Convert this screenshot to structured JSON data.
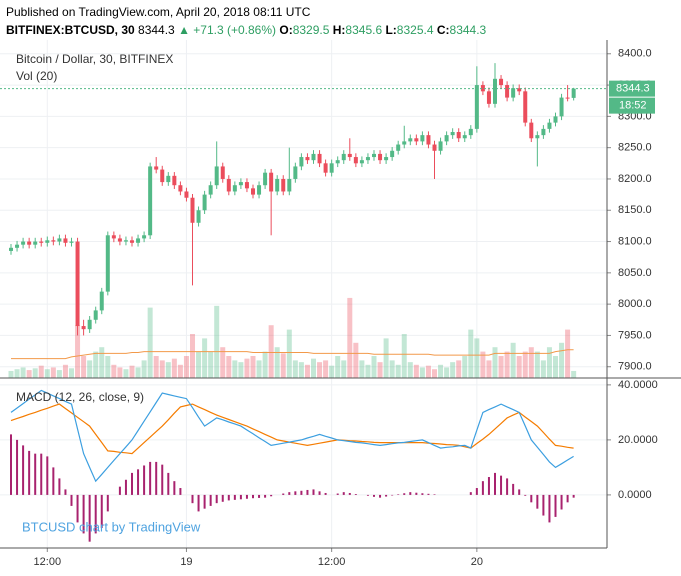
{
  "header": {
    "published": "Published on TradingView.com, April 20, 2018 08:11 UTC",
    "symbol": "BITFINEX:BTCUSD, 30",
    "price": "8344.3",
    "change": "▲ +71.3 (+0.86%)",
    "ohlc": [
      {
        "label": "O:",
        "value": "8329.5"
      },
      {
        "label": "H:",
        "value": "8345.6"
      },
      {
        "label": "L:",
        "value": "8325.4"
      },
      {
        "label": "C:",
        "value": "8344.3"
      }
    ]
  },
  "chart_data": {
    "type": "candlestick",
    "title": "Bitcoin / Dollar, 30, BITFINEX",
    "volume_label": "Vol (20)",
    "watermark": "BTCUSD chart by TradingView",
    "countdown": "18:52",
    "up_color": "#53b987",
    "down_color": "#eb4d5c",
    "volume_ma_color": "#f2994a",
    "open": [
      8085,
      8090,
      8095,
      8100,
      8095,
      8100,
      8098,
      8102,
      8100,
      8105,
      8098,
      8100,
      7965,
      7960,
      7975,
      7990,
      8020,
      8110,
      8105,
      8100,
      8102,
      8098,
      8105,
      8110,
      8220,
      8215,
      8195,
      8205,
      8190,
      8180,
      8170,
      8130,
      8150,
      8175,
      8190,
      8220,
      8200,
      8180,
      8190,
      8195,
      8185,
      8175,
      8190,
      8210,
      8180,
      8200,
      8180,
      8200,
      8220,
      8235,
      8230,
      8240,
      8225,
      8210,
      8225,
      8230,
      8240,
      8235,
      8225,
      8230,
      8235,
      8240,
      8230,
      8235,
      8245,
      8255,
      8260,
      8265,
      8260,
      8270,
      8255,
      8245,
      8260,
      8270,
      8275,
      8265,
      8270,
      8280,
      8350,
      8340,
      8320,
      8360,
      8350,
      8330,
      8345,
      8340,
      8290,
      8265,
      8270,
      8280,
      8290,
      8300,
      8330,
      8329.5
    ],
    "high": [
      8096,
      8101,
      8106,
      8106,
      8106,
      8106,
      8108,
      8108,
      8111,
      8111,
      8106,
      8106,
      7975,
      7981,
      7996,
      8026,
      8116,
      8116,
      8111,
      8108,
      8108,
      8111,
      8116,
      8226,
      8235,
      8221,
      8211,
      8211,
      8196,
      8186,
      8176,
      8156,
      8181,
      8196,
      8260,
      8226,
      8206,
      8196,
      8201,
      8201,
      8191,
      8196,
      8216,
      8216,
      8206,
      8206,
      8250,
      8226,
      8241,
      8241,
      8246,
      8246,
      8231,
      8231,
      8236,
      8246,
      8265,
      8241,
      8236,
      8241,
      8246,
      8246,
      8241,
      8251,
      8261,
      8285,
      8271,
      8271,
      8276,
      8276,
      8261,
      8266,
      8276,
      8281,
      8281,
      8276,
      8286,
      8380,
      8356,
      8346,
      8385,
      8366,
      8356,
      8351,
      8351,
      8346,
      8296,
      8276,
      8286,
      8296,
      8306,
      8336,
      8350,
      8345.6
    ],
    "low": [
      8079,
      8084,
      8089,
      8089,
      8089,
      8092,
      8092,
      8094,
      8094,
      8092,
      8092,
      7950,
      7950,
      7954,
      7969,
      7984,
      8014,
      8099,
      8094,
      8094,
      8092,
      8092,
      8099,
      8104,
      8209,
      8189,
      8189,
      8184,
      8174,
      8164,
      8030,
      8124,
      8144,
      8169,
      8184,
      8194,
      8174,
      8174,
      8184,
      8179,
      8169,
      8169,
      8184,
      8110,
      8174,
      8174,
      8174,
      8194,
      8214,
      8224,
      8224,
      8219,
      8204,
      8204,
      8219,
      8224,
      8229,
      8219,
      8219,
      8224,
      8229,
      8224,
      8224,
      8229,
      8239,
      8249,
      8254,
      8254,
      8254,
      8249,
      8200,
      8239,
      8254,
      8264,
      8259,
      8259,
      8264,
      8274,
      8334,
      8314,
      8314,
      8344,
      8324,
      8324,
      8334,
      8284,
      8259,
      8220,
      8264,
      8274,
      8284,
      8294,
      8324,
      8325.4
    ],
    "close": [
      8090,
      8095,
      8100,
      8095,
      8100,
      8098,
      8102,
      8100,
      8105,
      8098,
      8100,
      7965,
      7960,
      7975,
      7990,
      8020,
      8110,
      8105,
      8100,
      8102,
      8098,
      8105,
      8110,
      8220,
      8215,
      8195,
      8205,
      8190,
      8180,
      8170,
      8130,
      8150,
      8175,
      8190,
      8220,
      8200,
      8180,
      8190,
      8195,
      8185,
      8175,
      8190,
      8210,
      8180,
      8200,
      8180,
      8200,
      8220,
      8235,
      8230,
      8240,
      8225,
      8210,
      8225,
      8230,
      8240,
      8235,
      8225,
      8230,
      8235,
      8240,
      8230,
      8235,
      8245,
      8255,
      8260,
      8265,
      8260,
      8270,
      8255,
      8245,
      8260,
      8270,
      8275,
      8265,
      8270,
      8280,
      8350,
      8340,
      8320,
      8360,
      8350,
      8330,
      8345,
      8340,
      8290,
      8265,
      8270,
      8280,
      8290,
      8300,
      8330,
      8329.5,
      8344.3
    ],
    "volume": [
      8,
      10,
      12,
      9,
      11,
      14,
      10,
      12,
      9,
      15,
      11,
      60,
      25,
      20,
      30,
      35,
      25,
      15,
      12,
      10,
      14,
      12,
      20,
      80,
      25,
      20,
      18,
      22,
      15,
      25,
      50,
      30,
      45,
      30,
      82,
      35,
      25,
      20,
      18,
      22,
      25,
      20,
      30,
      60,
      35,
      28,
      55,
      20,
      18,
      15,
      22,
      18,
      20,
      14,
      25,
      20,
      91,
      40,
      20,
      15,
      25,
      18,
      45,
      20,
      15,
      50,
      18,
      15,
      12,
      14,
      10,
      15,
      12,
      18,
      20,
      25,
      55,
      45,
      30,
      20,
      35,
      25,
      30,
      40,
      25,
      30,
      35,
      30,
      20,
      35,
      25,
      40,
      55,
      8
    ],
    "volume_ma": [
      22,
      22,
      22,
      22,
      22,
      22,
      22,
      22,
      22,
      22,
      24,
      25,
      26,
      27,
      28,
      28,
      28,
      28,
      28,
      28,
      29,
      29,
      30,
      30,
      30,
      30,
      30,
      30,
      30,
      30,
      30,
      30,
      30,
      30,
      30,
      30,
      30,
      30,
      30,
      30,
      29,
      29,
      29,
      29,
      29,
      29,
      29,
      29,
      29,
      29,
      28,
      28,
      28,
      28,
      28,
      28,
      28,
      28,
      28,
      28,
      27,
      27,
      27,
      27,
      27,
      27,
      27,
      27,
      27,
      27,
      26,
      26,
      26,
      26,
      26,
      26,
      26,
      26,
      26,
      26,
      28,
      28,
      28,
      28,
      28,
      28,
      28,
      28,
      28,
      28,
      30,
      31,
      32,
      32
    ],
    "ylim": [
      7882,
      8422
    ],
    "yticks": [
      {
        "value": 7900,
        "label": "7900.0"
      },
      {
        "value": 7950,
        "label": "7950.0"
      },
      {
        "value": 8000,
        "label": "8000.0"
      },
      {
        "value": 8050,
        "label": "8050.0"
      },
      {
        "value": 8100,
        "label": "8100.0"
      },
      {
        "value": 8150,
        "label": "8150.0"
      },
      {
        "value": 8200,
        "label": "8200.0"
      },
      {
        "value": 8250,
        "label": "8250.0"
      },
      {
        "value": 8300,
        "label": "8300.0"
      },
      {
        "value": 8350,
        "label": "8350.0"
      },
      {
        "value": 8400,
        "label": "8400.0"
      }
    ],
    "xticks": [
      {
        "value": 6,
        "label": "12:00"
      },
      {
        "value": 29,
        "label": "19"
      },
      {
        "value": 53,
        "label": "12:00"
      },
      {
        "value": 77,
        "label": "20"
      }
    ],
    "grid": true,
    "macd": {
      "title": "MACD (12, 26, close, 9)",
      "macd_color": "#3c9fe0",
      "signal_color": "#f57c00",
      "histogram_color": "#a8226e",
      "macd": [
        30,
        31.6,
        33.2,
        34.8,
        36.4,
        38,
        37,
        36,
        35,
        34,
        33,
        24,
        15,
        10,
        5,
        7.5,
        10,
        12.5,
        15,
        17.5,
        20,
        23.4,
        26.8,
        30.2,
        33.6,
        37,
        36.5,
        36,
        35.5,
        35,
        31.7,
        28.3,
        25,
        26.5,
        28,
        27.3,
        26.5,
        25.8,
        25,
        23.6,
        22.2,
        20.8,
        19.4,
        18,
        18.4,
        18.8,
        19.2,
        19.6,
        20,
        20.7,
        21.3,
        22,
        21.3,
        20.7,
        20,
        19.7,
        19.4,
        19.1,
        18.9,
        18.6,
        18.3,
        18,
        18.3,
        18.6,
        18.9,
        19.1,
        19.4,
        19.7,
        20,
        19,
        18,
        17,
        17.3,
        17.5,
        17.8,
        18,
        17,
        23.5,
        30,
        31,
        32,
        33,
        32,
        31,
        30,
        25,
        20,
        17.3,
        14.7,
        12,
        10,
        11.3,
        12.7,
        14
      ],
      "signal": [
        27,
        27.8,
        28.5,
        29.3,
        30,
        30.8,
        31.5,
        32.3,
        33,
        31.4,
        29.8,
        28.2,
        26.6,
        25,
        22,
        19,
        16,
        15.8,
        15.5,
        15.3,
        15,
        17,
        19,
        21,
        23,
        25,
        27.3,
        29.7,
        32,
        32.5,
        33,
        32,
        31,
        30,
        29,
        28.2,
        27.4,
        26.6,
        25.8,
        25,
        24,
        23,
        22,
        21,
        20,
        19.6,
        19.2,
        18.8,
        18.4,
        18,
        18.4,
        18.8,
        19.2,
        19.6,
        20,
        19.9,
        19.7,
        19.6,
        19.4,
        19.3,
        19.1,
        19,
        19,
        19,
        19,
        19,
        19,
        19,
        19,
        18.8,
        18.7,
        18.5,
        18.3,
        18.2,
        18,
        17.5,
        17,
        18.7,
        20.3,
        22,
        24,
        26,
        28,
        29,
        30,
        28.3,
        26.7,
        25,
        22.7,
        20.3,
        18,
        17.7,
        17.3,
        17
      ],
      "histogram": [
        22,
        20,
        18,
        16,
        15,
        15,
        14,
        10,
        6,
        2,
        -4,
        -10,
        -14,
        -17,
        -14,
        -12,
        -6,
        0,
        3,
        5.5,
        8,
        9.3,
        10.7,
        12,
        12,
        11,
        8,
        5,
        2.5,
        0,
        -3,
        -6,
        -5,
        -4,
        -3,
        -2.5,
        -2,
        -1.8,
        -1.6,
        -1.4,
        -1.2,
        -1.1,
        -1,
        -0.5,
        0,
        0.5,
        1,
        1.3,
        1.5,
        1.8,
        2,
        1.3,
        0.7,
        0,
        0.5,
        1,
        0.7,
        0.3,
        0,
        -0.3,
        -0.7,
        -1,
        -0.6,
        -0.2,
        0.2,
        0.6,
        1,
        0.8,
        0.6,
        0.4,
        0.2,
        0,
        0,
        0,
        0,
        0,
        1,
        2.5,
        5,
        6.5,
        8,
        7,
        6,
        4,
        2,
        -0.3,
        -2.7,
        -5,
        -7.5,
        -10,
        -8,
        -5.3,
        -2.7,
        -1
      ],
      "ylim": [
        -19.3,
        42.5
      ],
      "yticks": [
        {
          "value": 0,
          "label": "0.0000"
        },
        {
          "value": 20,
          "label": "20.0000"
        },
        {
          "value": 40,
          "label": "40.0000"
        }
      ]
    }
  }
}
